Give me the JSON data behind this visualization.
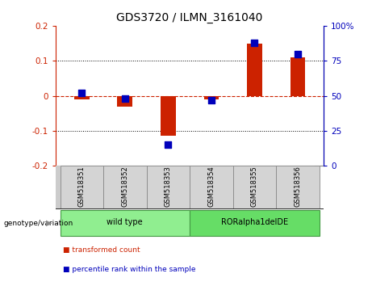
{
  "title": "GDS3720 / ILMN_3161040",
  "samples": [
    "GSM518351",
    "GSM518352",
    "GSM518353",
    "GSM518354",
    "GSM518355",
    "GSM518356"
  ],
  "red_values": [
    -0.01,
    -0.03,
    -0.115,
    -0.01,
    0.15,
    0.11
  ],
  "blue_values_pct": [
    52,
    48,
    15,
    47,
    88,
    80
  ],
  "ylim_left": [
    -0.2,
    0.2
  ],
  "ylim_right": [
    0,
    100
  ],
  "yticks_left": [
    -0.2,
    -0.1,
    0,
    0.1,
    0.2
  ],
  "yticks_right": [
    0,
    25,
    50,
    75,
    100
  ],
  "ytick_labels_right": [
    "0",
    "25",
    "50",
    "75",
    "100%"
  ],
  "groups": [
    {
      "label": "wild type",
      "indices": [
        0,
        1,
        2
      ],
      "color": "#90ee90"
    },
    {
      "label": "RORalpha1delDE",
      "indices": [
        3,
        4,
        5
      ],
      "color": "#66dd66"
    }
  ],
  "group_label_prefix": "genotype/variation",
  "legend_items": [
    {
      "color": "#cc2200",
      "label": "transformed count"
    },
    {
      "color": "#0000bb",
      "label": "percentile rank within the sample"
    }
  ],
  "red_color": "#cc2200",
  "blue_color": "#0000bb",
  "bar_width": 0.35,
  "blue_square_size": 30,
  "hline_color": "#cc2200",
  "grid_color": "#000000",
  "bg_color": "#ffffff",
  "plot_bg_color": "#ffffff"
}
